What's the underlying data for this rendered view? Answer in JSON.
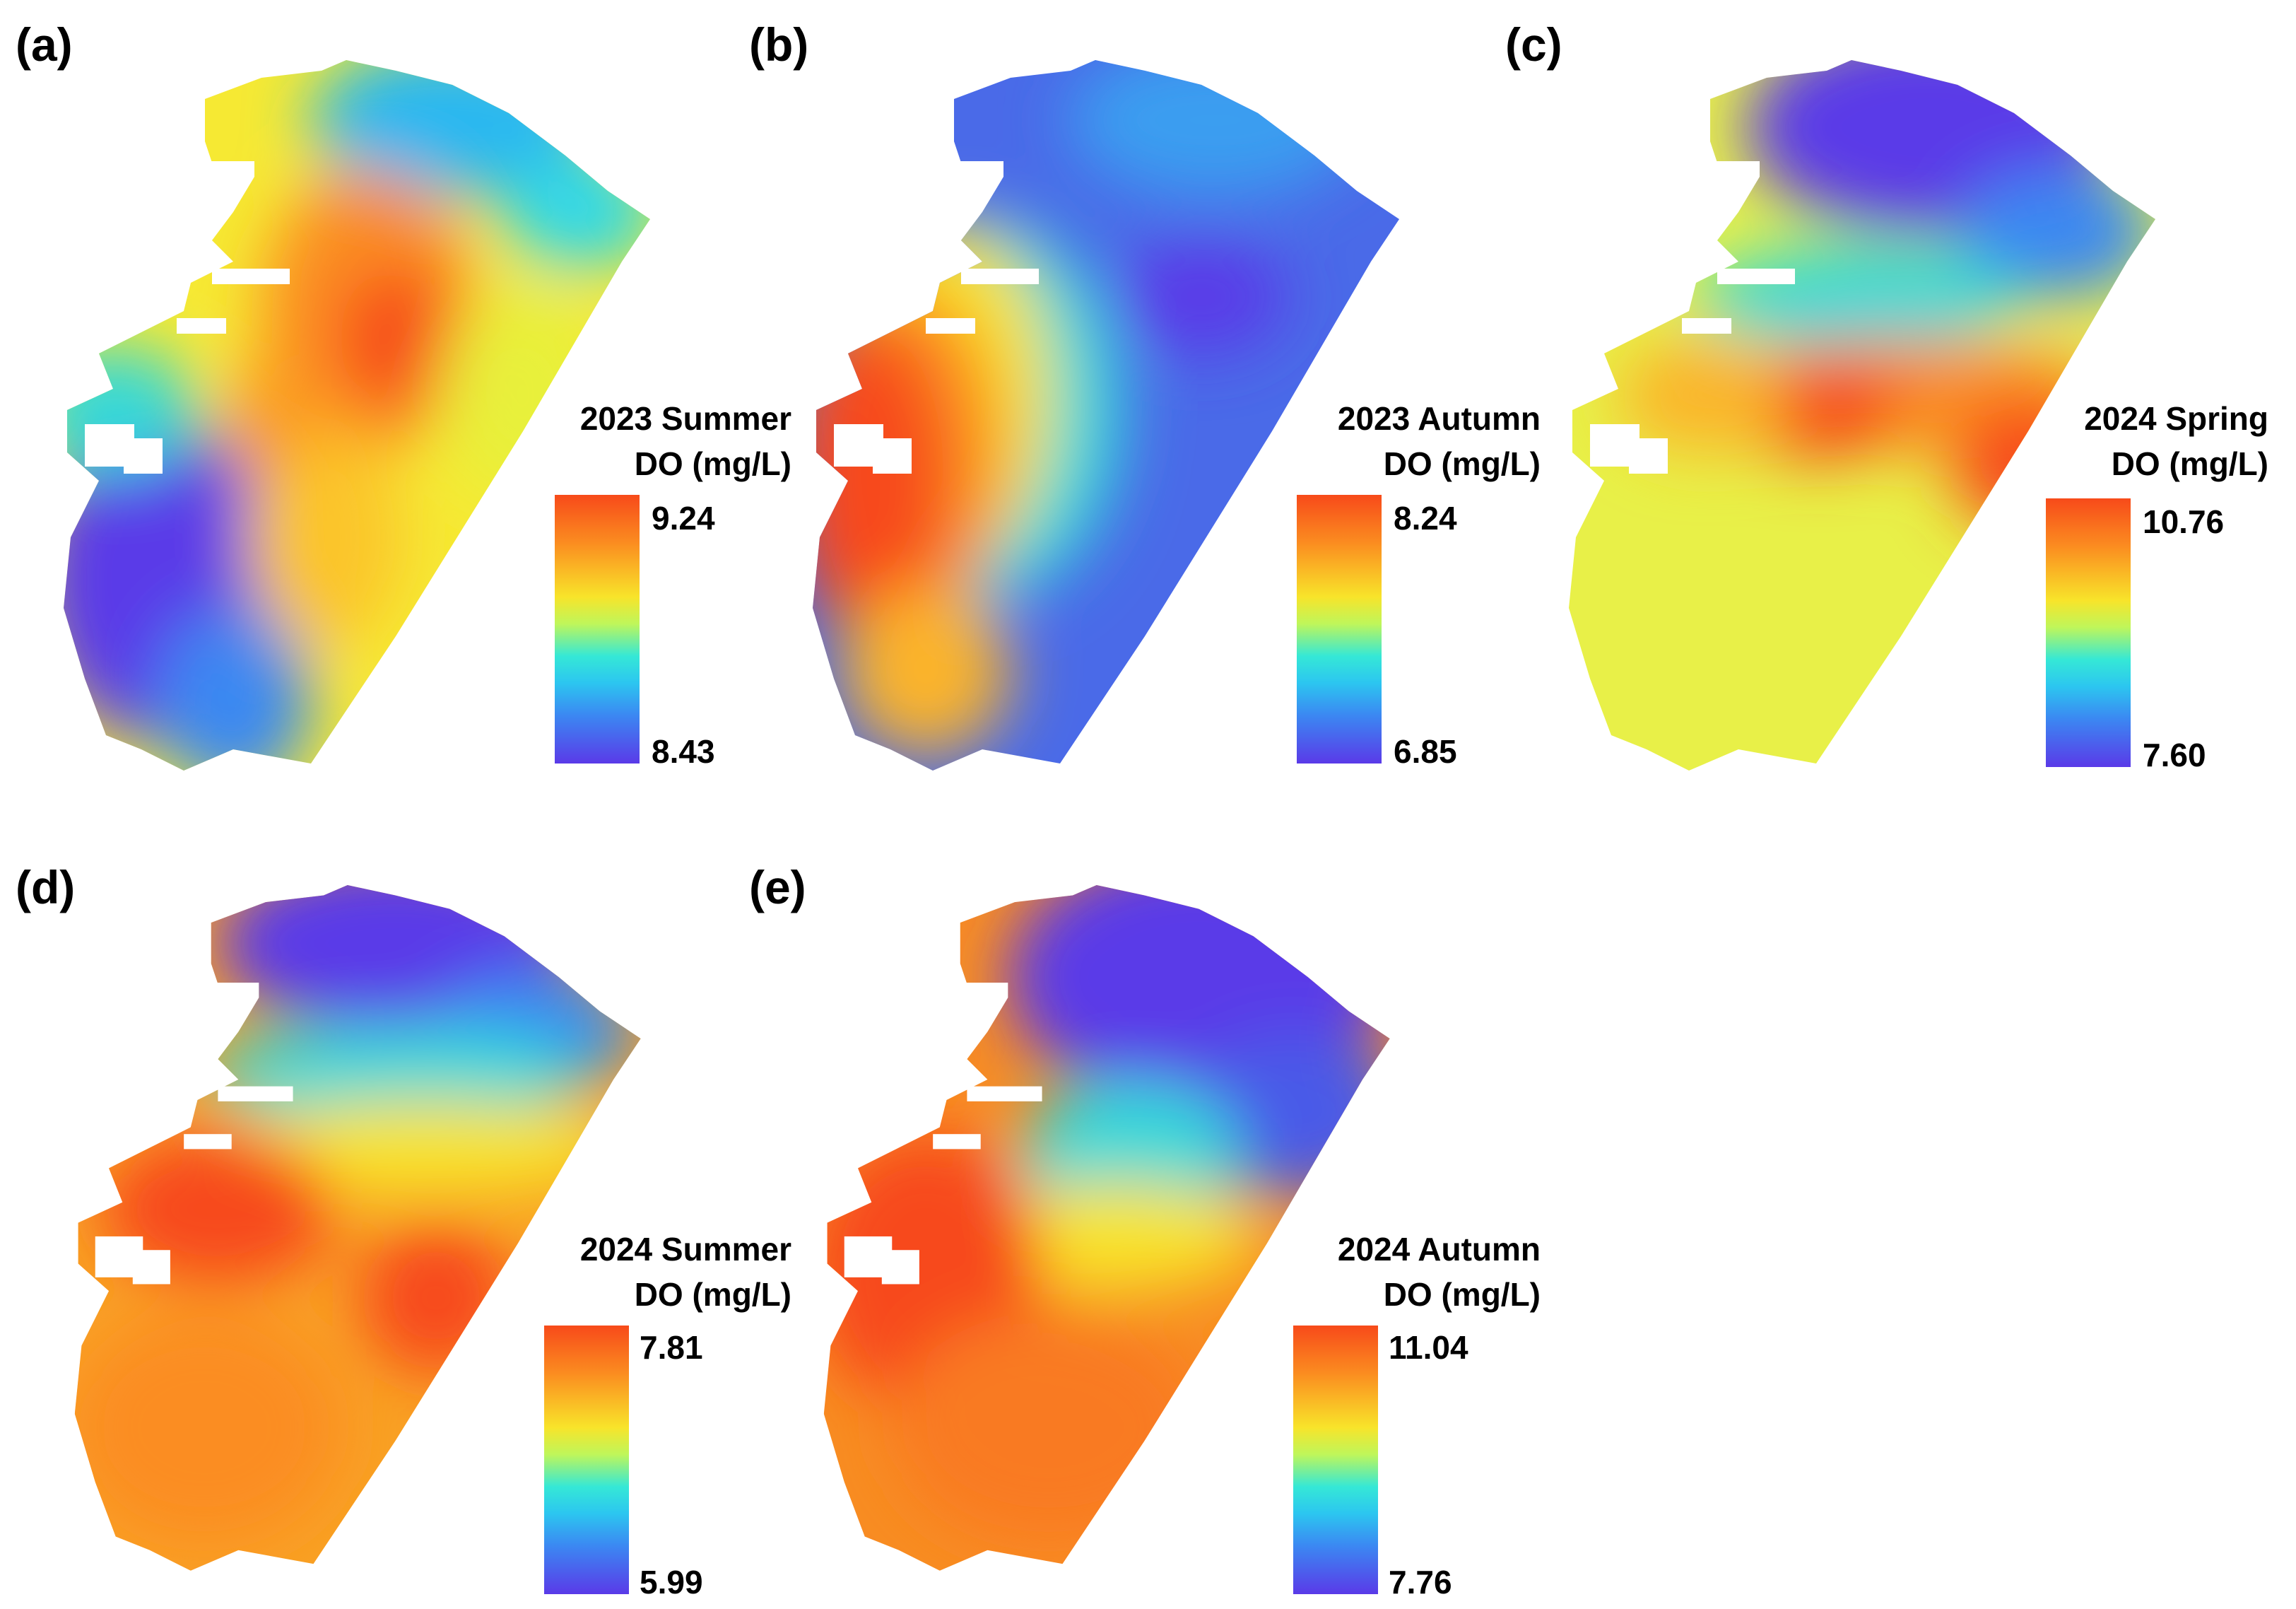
{
  "panels": [
    {
      "id": "a",
      "label": "(a)",
      "title_line1": "2023 Summer",
      "title_line2": "DO (mg/L)",
      "max": "9.24",
      "min": "8.43"
    },
    {
      "id": "b",
      "label": "(b)",
      "title_line1": "2023 Autumn",
      "title_line2": "DO (mg/L)",
      "max": "8.24",
      "min": "6.85"
    },
    {
      "id": "c",
      "label": "(c)",
      "title_line1": "2024 Spring",
      "title_line2": "DO (mg/L)",
      "max": "10.76",
      "min": "7.60"
    },
    {
      "id": "d",
      "label": "(d)",
      "title_line1": "2024 Summer",
      "title_line2": "DO (mg/L)",
      "max": "7.81",
      "min": "5.99"
    },
    {
      "id": "e",
      "label": "(e)",
      "title_line1": "2024 Autumn",
      "title_line2": "DO (mg/L)",
      "max": "11.04",
      "min": "7.76"
    }
  ],
  "colors": {
    "high": "#f74a1a",
    "orange": "#fb8d20",
    "yellow": "#f8e42a",
    "cyan": "#2ed8ea",
    "blue": "#3b88f2",
    "low": "#5a3ae8"
  }
}
